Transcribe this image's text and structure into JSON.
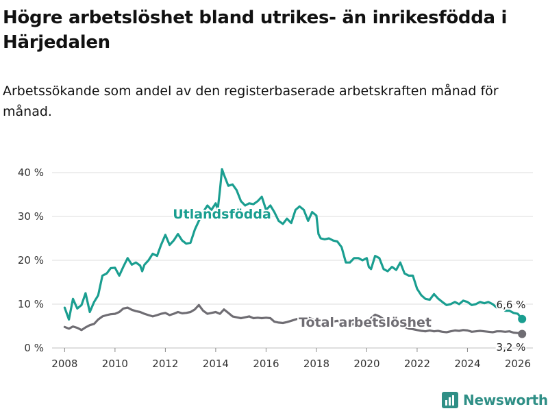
{
  "title": "Högre arbetslöshet bland utrikes- än inrikesfödda i Härjedalen",
  "subtitle": "Arbetssökande som andel av den registerbaserade arbetskraften månad för månad.",
  "brand": {
    "name": "Newsworthy",
    "color": "#2f8f86"
  },
  "colors": {
    "utlandsfodda": "#1a9e90",
    "total": "#6f6d73",
    "grid": "#dcdcdc"
  },
  "chart_data": {
    "type": "line",
    "title": "Högre arbetslöshet bland utrikes- än inrikesfödda i Härjedalen",
    "xlabel": "",
    "ylabel": "",
    "xlim": [
      2007.5,
      2026.6
    ],
    "ylim": [
      0,
      40
    ],
    "grid": true,
    "x_ticks": [
      2008,
      2010,
      2012,
      2014,
      2016,
      2018,
      2020,
      2022,
      2024,
      2026
    ],
    "x_tick_labels": [
      "2008",
      "2010",
      "2012",
      "2014",
      "2016",
      "2018",
      "2020",
      "2022",
      "2024",
      "2026"
    ],
    "y_ticks": [
      0,
      10,
      20,
      30,
      40
    ],
    "y_tick_labels": [
      "0 %",
      "10 %",
      "20 %",
      "30 %",
      "40 %"
    ],
    "series": [
      {
        "name": "Utlandsfödda",
        "label": "Utlandsfödda",
        "color": "#1a9e90",
        "end_label": "6,6 %",
        "end_value": 6.6,
        "points": [
          [
            2008.0,
            9.2
          ],
          [
            2008.17,
            6.5
          ],
          [
            2008.33,
            11.2
          ],
          [
            2008.5,
            9.0
          ],
          [
            2008.67,
            9.8
          ],
          [
            2008.83,
            12.5
          ],
          [
            2009.0,
            8.2
          ],
          [
            2009.17,
            10.5
          ],
          [
            2009.33,
            12.0
          ],
          [
            2009.5,
            16.5
          ],
          [
            2009.67,
            17.0
          ],
          [
            2009.83,
            18.2
          ],
          [
            2010.0,
            18.3
          ],
          [
            2010.17,
            16.5
          ],
          [
            2010.33,
            18.5
          ],
          [
            2010.5,
            20.5
          ],
          [
            2010.67,
            19.0
          ],
          [
            2010.83,
            19.5
          ],
          [
            2011.0,
            18.8
          ],
          [
            2011.08,
            17.5
          ],
          [
            2011.17,
            19.0
          ],
          [
            2011.33,
            20.0
          ],
          [
            2011.5,
            21.5
          ],
          [
            2011.67,
            21.0
          ],
          [
            2011.83,
            23.5
          ],
          [
            2012.0,
            25.8
          ],
          [
            2012.17,
            23.5
          ],
          [
            2012.33,
            24.5
          ],
          [
            2012.5,
            26.0
          ],
          [
            2012.67,
            24.5
          ],
          [
            2012.83,
            23.8
          ],
          [
            2013.0,
            24.0
          ],
          [
            2013.17,
            27.0
          ],
          [
            2013.33,
            29.0
          ],
          [
            2013.5,
            31.0
          ],
          [
            2013.67,
            32.5
          ],
          [
            2013.83,
            31.5
          ],
          [
            2014.0,
            33.0
          ],
          [
            2014.08,
            31.5
          ],
          [
            2014.17,
            36.0
          ],
          [
            2014.25,
            40.8
          ],
          [
            2014.33,
            39.5
          ],
          [
            2014.5,
            37.0
          ],
          [
            2014.67,
            37.3
          ],
          [
            2014.83,
            36.0
          ],
          [
            2015.0,
            33.5
          ],
          [
            2015.17,
            32.5
          ],
          [
            2015.33,
            33.0
          ],
          [
            2015.5,
            32.8
          ],
          [
            2015.67,
            33.5
          ],
          [
            2015.83,
            34.5
          ],
          [
            2016.0,
            31.5
          ],
          [
            2016.17,
            32.5
          ],
          [
            2016.33,
            31.0
          ],
          [
            2016.5,
            29.0
          ],
          [
            2016.67,
            28.3
          ],
          [
            2016.83,
            29.5
          ],
          [
            2017.0,
            28.5
          ],
          [
            2017.17,
            31.5
          ],
          [
            2017.33,
            32.3
          ],
          [
            2017.5,
            31.5
          ],
          [
            2017.67,
            29.0
          ],
          [
            2017.83,
            31.0
          ],
          [
            2018.0,
            30.2
          ],
          [
            2018.08,
            26.0
          ],
          [
            2018.17,
            25.0
          ],
          [
            2018.33,
            24.8
          ],
          [
            2018.5,
            25.0
          ],
          [
            2018.67,
            24.5
          ],
          [
            2018.83,
            24.3
          ],
          [
            2019.0,
            23.0
          ],
          [
            2019.17,
            19.5
          ],
          [
            2019.33,
            19.5
          ],
          [
            2019.5,
            20.5
          ],
          [
            2019.67,
            20.5
          ],
          [
            2019.83,
            20.0
          ],
          [
            2020.0,
            20.5
          ],
          [
            2020.08,
            18.5
          ],
          [
            2020.17,
            18.0
          ],
          [
            2020.33,
            21.0
          ],
          [
            2020.5,
            20.5
          ],
          [
            2020.67,
            18.0
          ],
          [
            2020.83,
            17.5
          ],
          [
            2021.0,
            18.5
          ],
          [
            2021.17,
            17.8
          ],
          [
            2021.33,
            19.5
          ],
          [
            2021.5,
            17.0
          ],
          [
            2021.67,
            16.5
          ],
          [
            2021.83,
            16.5
          ],
          [
            2022.0,
            13.5
          ],
          [
            2022.17,
            12.0
          ],
          [
            2022.33,
            11.2
          ],
          [
            2022.5,
            11.0
          ],
          [
            2022.67,
            12.3
          ],
          [
            2022.83,
            11.3
          ],
          [
            2023.0,
            10.5
          ],
          [
            2023.17,
            9.8
          ],
          [
            2023.33,
            10.0
          ],
          [
            2023.5,
            10.5
          ],
          [
            2023.67,
            10.0
          ],
          [
            2023.83,
            10.8
          ],
          [
            2024.0,
            10.5
          ],
          [
            2024.17,
            9.8
          ],
          [
            2024.33,
            10.0
          ],
          [
            2024.5,
            10.5
          ],
          [
            2024.67,
            10.2
          ],
          [
            2024.83,
            10.5
          ],
          [
            2025.0,
            10.0
          ],
          [
            2025.17,
            9.2
          ],
          [
            2025.33,
            9.7
          ],
          [
            2025.5,
            8.5
          ],
          [
            2025.67,
            8.5
          ],
          [
            2025.83,
            8.0
          ],
          [
            2026.0,
            7.8
          ],
          [
            2026.17,
            6.6
          ]
        ]
      },
      {
        "name": "Total arbetslöshet",
        "label": "Total arbetslöshet",
        "color": "#6f6d73",
        "end_label": "3,2 %",
        "end_value": 3.2,
        "points": [
          [
            2008.0,
            4.8
          ],
          [
            2008.17,
            4.4
          ],
          [
            2008.33,
            4.9
          ],
          [
            2008.5,
            4.6
          ],
          [
            2008.67,
            4.1
          ],
          [
            2008.83,
            4.7
          ],
          [
            2009.0,
            5.2
          ],
          [
            2009.17,
            5.5
          ],
          [
            2009.33,
            6.5
          ],
          [
            2009.5,
            7.2
          ],
          [
            2009.67,
            7.5
          ],
          [
            2009.83,
            7.7
          ],
          [
            2010.0,
            7.8
          ],
          [
            2010.17,
            8.2
          ],
          [
            2010.33,
            9.0
          ],
          [
            2010.5,
            9.2
          ],
          [
            2010.67,
            8.7
          ],
          [
            2010.83,
            8.4
          ],
          [
            2011.0,
            8.2
          ],
          [
            2011.17,
            7.8
          ],
          [
            2011.33,
            7.5
          ],
          [
            2011.5,
            7.2
          ],
          [
            2011.67,
            7.5
          ],
          [
            2011.83,
            7.8
          ],
          [
            2012.0,
            8.0
          ],
          [
            2012.17,
            7.5
          ],
          [
            2012.33,
            7.8
          ],
          [
            2012.5,
            8.2
          ],
          [
            2012.67,
            7.9
          ],
          [
            2012.83,
            8.0
          ],
          [
            2013.0,
            8.2
          ],
          [
            2013.17,
            8.8
          ],
          [
            2013.33,
            9.8
          ],
          [
            2013.5,
            8.5
          ],
          [
            2013.67,
            7.8
          ],
          [
            2013.83,
            8.0
          ],
          [
            2014.0,
            8.2
          ],
          [
            2014.17,
            7.8
          ],
          [
            2014.33,
            8.8
          ],
          [
            2014.5,
            8.0
          ],
          [
            2014.67,
            7.2
          ],
          [
            2014.83,
            7.0
          ],
          [
            2015.0,
            6.8
          ],
          [
            2015.17,
            7.0
          ],
          [
            2015.33,
            7.2
          ],
          [
            2015.5,
            6.8
          ],
          [
            2015.67,
            6.9
          ],
          [
            2015.83,
            6.8
          ],
          [
            2016.0,
            6.9
          ],
          [
            2016.17,
            6.8
          ],
          [
            2016.33,
            6.0
          ],
          [
            2016.5,
            5.8
          ],
          [
            2016.67,
            5.7
          ],
          [
            2016.83,
            5.9
          ],
          [
            2017.0,
            6.2
          ],
          [
            2017.17,
            6.5
          ],
          [
            2017.33,
            6.8
          ],
          [
            2017.5,
            6.7
          ],
          [
            2017.67,
            6.9
          ],
          [
            2017.83,
            6.6
          ],
          [
            2018.0,
            6.3
          ],
          [
            2018.17,
            6.2
          ],
          [
            2018.33,
            6.1
          ],
          [
            2018.5,
            5.9
          ],
          [
            2018.67,
            6.0
          ],
          [
            2018.83,
            6.2
          ],
          [
            2019.0,
            5.8
          ],
          [
            2019.17,
            5.3
          ],
          [
            2019.33,
            5.2
          ],
          [
            2019.5,
            5.5
          ],
          [
            2019.67,
            5.4
          ],
          [
            2019.83,
            5.6
          ],
          [
            2020.0,
            5.9
          ],
          [
            2020.17,
            6.8
          ],
          [
            2020.33,
            7.6
          ],
          [
            2020.5,
            7.2
          ],
          [
            2020.67,
            6.6
          ],
          [
            2020.83,
            6.2
          ],
          [
            2021.0,
            6.0
          ],
          [
            2021.17,
            5.5
          ],
          [
            2021.33,
            5.2
          ],
          [
            2021.5,
            4.8
          ],
          [
            2021.67,
            4.4
          ],
          [
            2021.83,
            4.3
          ],
          [
            2022.0,
            4.1
          ],
          [
            2022.17,
            3.9
          ],
          [
            2022.33,
            3.8
          ],
          [
            2022.5,
            4.0
          ],
          [
            2022.67,
            3.8
          ],
          [
            2022.83,
            3.9
          ],
          [
            2023.0,
            3.7
          ],
          [
            2023.17,
            3.6
          ],
          [
            2023.33,
            3.8
          ],
          [
            2023.5,
            4.0
          ],
          [
            2023.67,
            3.9
          ],
          [
            2023.83,
            4.1
          ],
          [
            2024.0,
            4.0
          ],
          [
            2024.17,
            3.7
          ],
          [
            2024.33,
            3.8
          ],
          [
            2024.5,
            3.9
          ],
          [
            2024.67,
            3.8
          ],
          [
            2024.83,
            3.7
          ],
          [
            2025.0,
            3.6
          ],
          [
            2025.17,
            3.8
          ],
          [
            2025.33,
            3.8
          ],
          [
            2025.5,
            3.7
          ],
          [
            2025.67,
            3.8
          ],
          [
            2025.83,
            3.5
          ],
          [
            2026.0,
            3.4
          ],
          [
            2026.17,
            3.2
          ]
        ]
      }
    ]
  }
}
